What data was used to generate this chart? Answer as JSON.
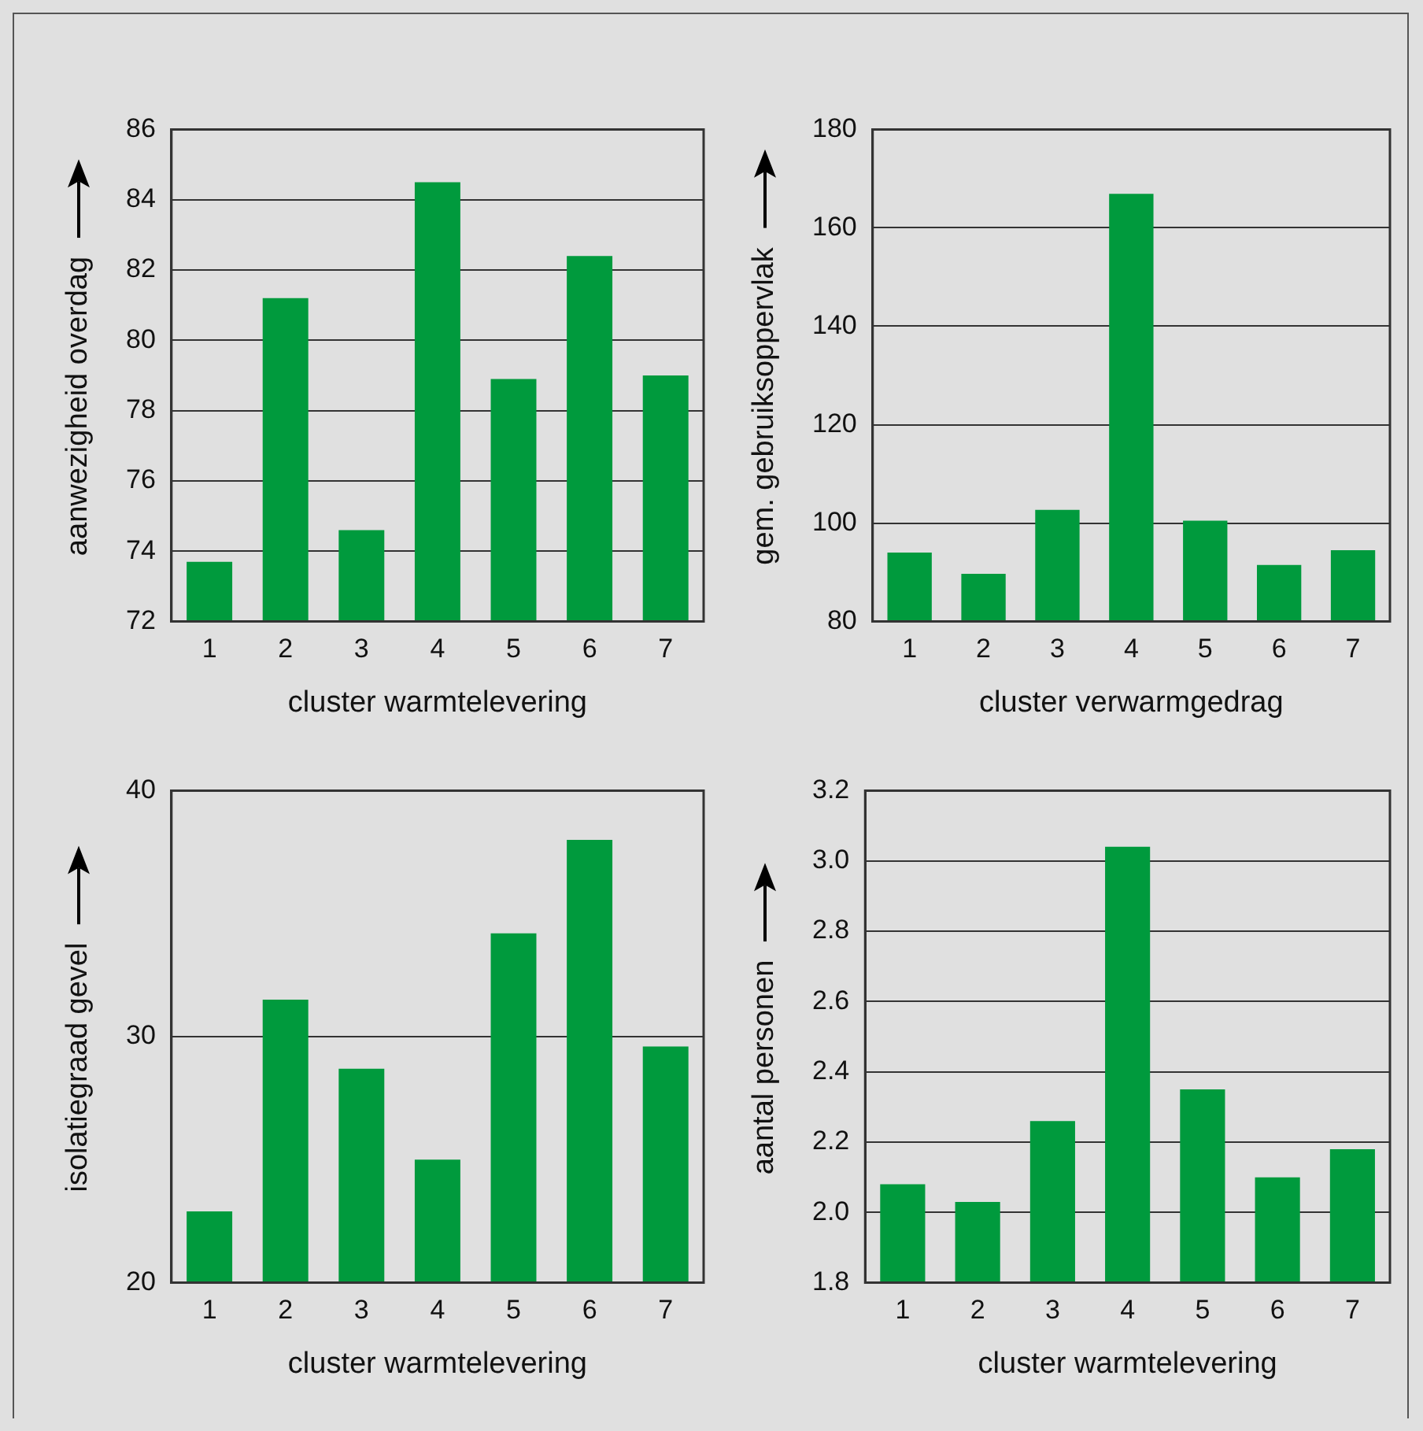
{
  "chart_data": [
    {
      "type": "bar",
      "categories": [
        "1",
        "2",
        "3",
        "4",
        "5",
        "6",
        "7"
      ],
      "values": [
        73.7,
        81.2,
        74.6,
        84.5,
        78.9,
        82.4,
        79.0
      ],
      "color": "#009a3d",
      "xlabel": "cluster warmtelevering",
      "ylabel": "aanwezigheid overdag",
      "ylim": [
        72,
        86
      ],
      "yticks": [
        72,
        74,
        76,
        78,
        80,
        82,
        84,
        86
      ],
      "grid": "y"
    },
    {
      "type": "bar",
      "categories": [
        "1",
        "2",
        "3",
        "4",
        "5",
        "6",
        "7"
      ],
      "values": [
        94,
        89.7,
        102.7,
        166.9,
        100.5,
        91.5,
        94.5
      ],
      "color": "#009a3d",
      "xlabel": "cluster verwarmgedrag",
      "ylabel": "gem. gebruiksoppervlak",
      "ylim": [
        80,
        180
      ],
      "yticks": [
        80,
        100,
        120,
        140,
        160,
        180
      ],
      "grid": "y"
    },
    {
      "type": "bar",
      "categories": [
        "1",
        "2",
        "3",
        "4",
        "5",
        "6",
        "7"
      ],
      "values": [
        22.9,
        31.5,
        28.7,
        25.0,
        34.2,
        38.0,
        29.6
      ],
      "color": "#009a3d",
      "xlabel": "cluster warmtelevering",
      "ylabel": "isolatiegraad gevel",
      "ylim": [
        20,
        40
      ],
      "yticks": [
        20,
        30,
        40
      ],
      "grid": "y"
    },
    {
      "type": "bar",
      "categories": [
        "1",
        "2",
        "3",
        "4",
        "5",
        "6",
        "7"
      ],
      "values": [
        2.08,
        2.03,
        2.26,
        3.04,
        2.35,
        2.1,
        2.18
      ],
      "color": "#009a3d",
      "xlabel": "cluster warmtelevering",
      "ylabel": "aantal personen",
      "ylim": [
        1.8,
        3.2
      ],
      "yticks": [
        {
          "value": 1.8,
          "label": "1.8"
        },
        {
          "value": 2.0,
          "label": "2.0"
        },
        {
          "value": 2.2,
          "label": "2.2"
        },
        {
          "value": 2.4,
          "label": "2.4"
        },
        {
          "value": 2.6,
          "label": "2.6"
        },
        {
          "value": 2.8,
          "label": "2.8"
        },
        {
          "value": 3.0,
          "label": "3.0"
        },
        {
          "value": 3.2,
          "label": "3.2"
        }
      ],
      "grid": "y"
    }
  ]
}
